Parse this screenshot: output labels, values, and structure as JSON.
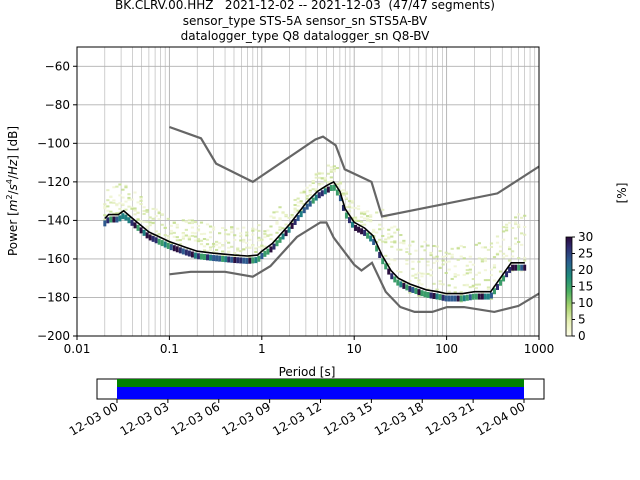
{
  "title_lines": [
    "BK.CLRV.00.HHZ   2021-12-02 -- 2021-12-03  (47/47 segments)",
    "sensor_type STS-5A sensor_sn STS5A-BV",
    "datalogger_type Q8 datalogger_sn Q8-BV"
  ],
  "chart_data": {
    "type": "line",
    "xlabel": "Period [s]",
    "ylabel_parts": [
      "Power [",
      "m",
      "2",
      "/",
      "s",
      "4",
      "/",
      "Hz",
      "] [dB]"
    ],
    "x_scale": "log",
    "xlim": [
      0.01,
      1000
    ],
    "ylim": [
      -200,
      -50
    ],
    "x_ticks": [
      0.01,
      0.1,
      1,
      10,
      100,
      1000
    ],
    "x_tick_labels": [
      "0.01",
      "0.1",
      "1",
      "10",
      "100",
      "1000"
    ],
    "y_ticks": [
      -200,
      -180,
      -160,
      -140,
      -120,
      -100,
      -80,
      -60
    ],
    "y_tick_labels": [
      "−200",
      "−180",
      "−160",
      "−140",
      "−120",
      "−100",
      "−80",
      "−60"
    ],
    "grid": true,
    "colorbar": {
      "label": "[%]",
      "range": [
        0,
        30
      ],
      "ticks": [
        0,
        5,
        10,
        15,
        20,
        25,
        30
      ],
      "tick_labels": [
        "0",
        "5",
        "10",
        "15",
        "20",
        "25",
        "30"
      ]
    },
    "noise_models": [
      {
        "x": [
          0.1,
          0.22,
          0.32,
          0.8,
          3.8,
          4.6,
          6.3,
          7.9,
          15.4,
          20,
          354.8,
          1000
        ],
        "y": [
          -91.5,
          -97.4,
          -110.5,
          -120,
          -98,
          -96.5,
          -101,
          -113.5,
          -120,
          -138,
          -126,
          -112
        ]
      },
      {
        "x": [
          0.1,
          0.17,
          0.4,
          0.8,
          1.24,
          2.4,
          4.3,
          5.0,
          6.0,
          10,
          12,
          15.6,
          21.9,
          31.6,
          45,
          70,
          101,
          154,
          328,
          600,
          1000
        ],
        "y": [
          -168,
          -166.7,
          -166.7,
          -169.2,
          -163.7,
          -148.6,
          -141.1,
          -141.1,
          -149,
          -163,
          -166,
          -162,
          -177,
          -185,
          -187.5,
          -187.5,
          -185,
          -185,
          -187.5,
          -184.4,
          -178
        ]
      }
    ],
    "mode_line": {
      "x": [
        0.02,
        0.022,
        0.028,
        0.032,
        0.04,
        0.06,
        0.1,
        0.15,
        0.2,
        0.3,
        0.5,
        0.7,
        0.9,
        1.0,
        1.3,
        2,
        3,
        4,
        5,
        6,
        7,
        8,
        10,
        13,
        16,
        20,
        25,
        30,
        40,
        60,
        80,
        100,
        150,
        200,
        300,
        500,
        600,
        700
      ],
      "y": [
        -139,
        -137,
        -137,
        -135,
        -139,
        -146,
        -151,
        -154,
        -156,
        -157,
        -158,
        -158.5,
        -158,
        -156,
        -152,
        -142,
        -131,
        -125,
        -122,
        -120,
        -125,
        -134,
        -141,
        -144,
        -148,
        -158,
        -166,
        -170,
        -173,
        -176,
        -177,
        -178,
        -178,
        -177,
        -177,
        -162,
        -162,
        -162
      ]
    },
    "segments_timeline": {
      "tick_labels": [
        "12-03 00",
        "12-03 03",
        "12-03 06",
        "12-03 09",
        "12-03 12",
        "12-03 15",
        "12-03 18",
        "12-03 21",
        "12-04 00"
      ],
      "colors": {
        "coverage": "#008000",
        "used": "#0000ff"
      }
    },
    "colors": {
      "noise_model": "#666666",
      "mode": "#000000",
      "grid": "#b0b0b0"
    }
  }
}
